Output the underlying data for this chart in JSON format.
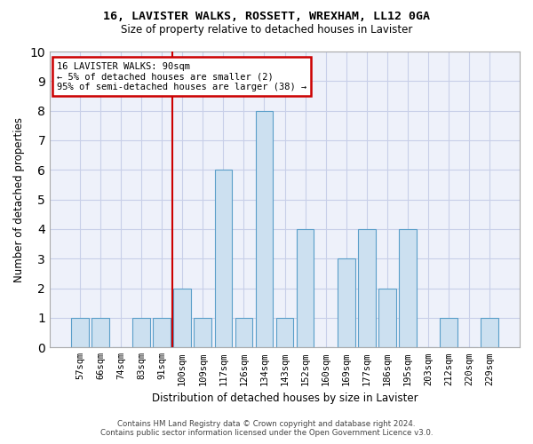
{
  "title1": "16, LAVISTER WALKS, ROSSETT, WREXHAM, LL12 0GA",
  "title2": "Size of property relative to detached houses in Lavister",
  "xlabel": "Distribution of detached houses by size in Lavister",
  "ylabel": "Number of detached properties",
  "categories": [
    "57sqm",
    "66sqm",
    "74sqm",
    "83sqm",
    "91sqm",
    "100sqm",
    "109sqm",
    "117sqm",
    "126sqm",
    "134sqm",
    "143sqm",
    "152sqm",
    "160sqm",
    "169sqm",
    "177sqm",
    "186sqm",
    "195sqm",
    "203sqm",
    "212sqm",
    "220sqm",
    "229sqm"
  ],
  "values": [
    1,
    1,
    0,
    1,
    1,
    2,
    1,
    6,
    1,
    8,
    1,
    4,
    0,
    3,
    4,
    2,
    4,
    0,
    1,
    0,
    1
  ],
  "bar_color": "#cce0f0",
  "bar_edgecolor": "#5a9ec9",
  "redline_index": 4,
  "annotation_title": "16 LAVISTER WALKS: 90sqm",
  "annotation_line1": "← 5% of detached houses are smaller (2)",
  "annotation_line2": "95% of semi-detached houses are larger (38) →",
  "annotation_box_color": "#ffffff",
  "annotation_box_edgecolor": "#cc0000",
  "redline_color": "#cc0000",
  "ylim": [
    0,
    10
  ],
  "yticks": [
    0,
    1,
    2,
    3,
    4,
    5,
    6,
    7,
    8,
    9,
    10
  ],
  "footer1": "Contains HM Land Registry data © Crown copyright and database right 2024.",
  "footer2": "Contains public sector information licensed under the Open Government Licence v3.0.",
  "plot_bg_color": "#eef1fa",
  "grid_color": "#c8cfe8"
}
